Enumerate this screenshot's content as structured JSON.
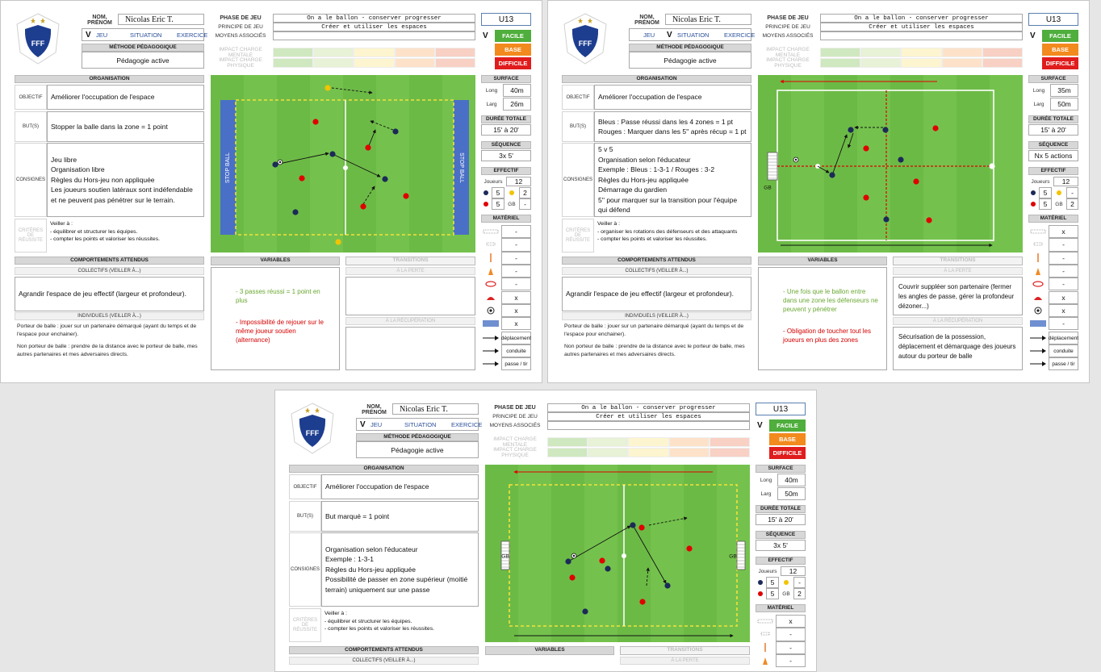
{
  "logo_text": "FFF",
  "sheets": [
    {
      "name_label": "NOM, PRÉNOM",
      "name": "Nicolas Eric T.",
      "tabs": [
        "JEU",
        "SITUATION",
        "EXERCICE"
      ],
      "tab_check": "V",
      "checked_tab": 0,
      "method_label": "MÉTHODE PÉDAGOGIQUE",
      "method": "Pédagogie active",
      "phase": [
        {
          "label": "PHASE DE JEU",
          "value": "On a le ballon - conserver progresser"
        },
        {
          "label": "PRINCIPE DE JEU",
          "value": "Créer et utiliser les espaces"
        },
        {
          "label": "MOYENS ASSOCIÉS"
        }
      ],
      "impact": [
        "IMPACT CHARGE MENTALE",
        "IMPACT CHARGE PHYSIQUE"
      ],
      "level": "U13",
      "difficulty": [
        "FACILE",
        "BASE",
        "DIFFICILE"
      ],
      "difficulty_check": "V",
      "checked_difficulty": 0,
      "organisation_title": "ORGANISATION",
      "rows": [
        {
          "label": "OBJECTIF",
          "lines": [
            "Améliorer l'occupation de l'espace"
          ]
        },
        {
          "label": "BUT(S)",
          "lines": [
            "Stopper la balle dans la zone = 1 point"
          ]
        },
        {
          "label": "CONSIGNES",
          "lines": [
            "Jeu libre",
            "Organisation libre",
            "Règles du Hors-jeu non appliquée",
            "Les joueurs soutien latéraux sont indéfendable et ne peuvent pas pénétrer sur le terrain."
          ]
        },
        {
          "label": "CRITÈRES DE RÉUSSITE",
          "lines": [
            "Veiller à :",
            "- équilibrer et structurer les équipes.",
            "- compter les points et valoriser les réussites."
          ]
        }
      ],
      "field_labels": [
        "STOP BALL",
        "STOP BALL"
      ],
      "surface_title": "SURFACE",
      "surface": [
        {
          "label": "Long",
          "value": "40m"
        },
        {
          "label": "Larg",
          "value": "26m"
        }
      ],
      "duration_title": "DURÉE TOTALE",
      "duration": "15' à 20'",
      "sequence_title": "SÉQUENCE",
      "sequence": "3x 5'",
      "effectif_title": "EFFECTIF",
      "players_label": "Joueurs",
      "players": "12",
      "teams": [
        {
          "count": "5",
          "extra": "2"
        },
        {
          "count": "5",
          "extra_label": "GB",
          "extra": "-"
        }
      ],
      "material_title": "MATÉRIEL",
      "material": [
        "-",
        "-",
        "-",
        "-",
        "-",
        "x",
        "x",
        "x"
      ],
      "moves": [
        "déplacement",
        "conduite",
        "passe / tir"
      ],
      "behaviour_title": "COMPORTEMENTS ATTENDUS",
      "collective_title": "COLLECTIFS (VEILLER À...)",
      "collective": "Agrandir l'espace de jeu effectif (largeur et profondeur).",
      "individual_title": "INDIVIDUELS (VEILLER À...)",
      "individual": [
        "Porteur de balle : jouer sur un partenaire démarqué (ayant du temps et de l'espace pour enchainer).",
        "Non porteur de balle : prendre de la distance avec le porteur de balle, mes autres partenaires et mes adversaires directs."
      ],
      "variables_title": "VARIABLES",
      "variables": [
        {
          "text": "- 3 passes réussi = 1 point en plus",
          "color": "#6aa832"
        },
        {
          "text": "- Impossibilité de rejouer sur le même joueur soutien (alternance)",
          "color": "#d40000"
        }
      ],
      "transitions_title": "TRANSITIONS",
      "loss_title": "À LA PERTE",
      "recovery_title": "À LA RÉCUPÉRATION"
    },
    {
      "name_label": "NOM, PRÉNOM",
      "name": "Nicolas Eric T.",
      "tabs": [
        "JEU",
        "SITUATION",
        "EXERCICE"
      ],
      "tab_check": "V",
      "checked_tab": 1,
      "method_label": "MÉTHODE PÉDAGOGIQUE",
      "method": "Pédagogie active",
      "phase": [
        {
          "label": "PHASE DE JEU",
          "value": "On a le ballon - conserver progresser"
        },
        {
          "label": "PRINCIPE DE JEU",
          "value": "Créer et utiliser les espaces"
        },
        {
          "label": "MOYENS ASSOCIÉS"
        }
      ],
      "impact": [
        "IMPACT CHARGE MENTALE",
        "IMPACT CHARGE PHYSIQUE"
      ],
      "level": "U13",
      "difficulty": [
        "FACILE",
        "BASE",
        "DIFFICILE"
      ],
      "difficulty_check": "V",
      "checked_difficulty": 0,
      "organisation_title": "ORGANISATION",
      "rows": [
        {
          "label": "OBJECTIF",
          "lines": [
            "Améliorer l'occupation de l'espace"
          ]
        },
        {
          "label": "BUT(S)",
          "lines": [
            "Bleus : Passe réussi dans les 4 zones = 1 pt",
            "Rouges : Marquer dans les 5'' après récup = 1 pt"
          ]
        },
        {
          "label": "CONSIGNES",
          "lines": [
            "5 v 5",
            "Organisation selon l'éducateur",
            "Exemple : Bleus : 1-3-1 / Rouges : 3-2",
            "Règles du Hors-jeu appliquée",
            "Démarrage du gardien",
            "5'' pour marquer sur la transition pour l'équipe qui défend"
          ]
        },
        {
          "label": "CRITÈRES DE RÉUSSITE",
          "lines": [
            "Veiller à :",
            "- organiser les rotations des défenseurs et des attaquants",
            "- compter les points et valoriser les réussites."
          ]
        }
      ],
      "field_labels": [
        "GB"
      ],
      "surface_title": "SURFACE",
      "surface": [
        {
          "label": "Long",
          "value": "35m"
        },
        {
          "label": "Larg",
          "value": "50m"
        }
      ],
      "duration_title": "DURÉE TOTALE",
      "duration": "15' à 20'",
      "sequence_title": "SÉQUENCE",
      "sequence": "Nx 5 actions",
      "effectif_title": "EFFECTIF",
      "players_label": "Joueurs",
      "players": "12",
      "teams": [
        {
          "count": "5",
          "extra": "-"
        },
        {
          "count": "5",
          "extra_label": "GB",
          "extra": "2"
        }
      ],
      "material_title": "MATÉRIEL",
      "material": [
        "x",
        "-",
        "-",
        "-",
        "-",
        "x",
        "x",
        "-"
      ],
      "moves": [
        "déplacement",
        "conduite",
        "passe / tir"
      ],
      "behaviour_title": "COMPORTEMENTS ATTENDUS",
      "collective_title": "COLLECTIFS (VEILLER À...)",
      "collective": "Agrandir l'espace de jeu effectif (largeur et profondeur).",
      "individual_title": "INDIVIDUELS (VEILLER À...)",
      "individual": [
        "Porteur de balle : jouer sur un partenaire démarqué (ayant du temps et de l'espace pour enchainer).",
        "Non porteur de balle : prendre de la distance avec le porteur de balle, mes autres partenaires et mes adversaires directs."
      ],
      "variables_title": "VARIABLES",
      "variables": [
        {
          "text": "- Une fois que le ballon entre dans une zone les défenseurs ne peuvent y pénétrer",
          "color": "#6aa832"
        },
        {
          "text": "- Obligation de toucher tout les joueurs en plus des zones",
          "color": "#d40000"
        }
      ],
      "transitions_title": "TRANSITIONS",
      "loss_title": "À LA PERTE",
      "recovery_title": "À LA RÉCUPÉRATION",
      "loss": "Couvrir suppléer son partenaire (fermer les angles de passe, gérer la profondeur dézoner...)",
      "recovery": "Sécurisation de la possession, déplacement et démarquage des joueurs autour du porteur de balle"
    },
    {
      "name_label": "NOM, PRÉNOM",
      "name": "Nicolas Eric T.",
      "tabs": [
        "JEU",
        "SITUATION",
        "EXERCICE"
      ],
      "tab_check": "V",
      "checked_tab": 0,
      "method_label": "MÉTHODE PÉDAGOGIQUE",
      "method": "Pédagogie active",
      "phase": [
        {
          "label": "PHASE DE JEU",
          "value": "On a le ballon - conserver progresser"
        },
        {
          "label": "PRINCIPE DE JEU",
          "value": "Créer et utiliser les espaces"
        },
        {
          "label": "MOYENS ASSOCIÉS"
        }
      ],
      "impact": [
        "IMPACT CHARGE MENTALE",
        "IMPACT CHARGE PHYSIQUE"
      ],
      "level": "U13",
      "difficulty": [
        "FACILE",
        "BASE",
        "DIFFICILE"
      ],
      "difficulty_check": "V",
      "checked_difficulty": 0,
      "organisation_title": "ORGANISATION",
      "rows": [
        {
          "label": "OBJECTIF",
          "lines": [
            "Améliorer l'occupation de l'espace"
          ]
        },
        {
          "label": "BUT(S)",
          "lines": [
            "But marqué = 1 point"
          ]
        },
        {
          "label": "CONSIGNES",
          "lines": [
            "Organisation selon l'éducateur",
            "Exemple : 1-3-1",
            "Règles du Hors-jeu appliquée",
            "Possibilité de passer en zone supérieur (moitié terrain) uniquement sur une passe"
          ]
        },
        {
          "label": "CRITÈRES DE RÉUSSITE",
          "lines": [
            "Veiller à :",
            "- équilibrer et structurer les équipes.",
            "- compter les points et valoriser les réussites."
          ]
        }
      ],
      "field_labels": [
        "GB",
        "GB"
      ],
      "surface_title": "SURFACE",
      "surface": [
        {
          "label": "Long",
          "value": "40m"
        },
        {
          "label": "Larg",
          "value": "50m"
        }
      ],
      "duration_title": "DURÉE TOTALE",
      "duration": "15' à 20'",
      "sequence_title": "SÉQUENCE",
      "sequence": "3x 5'",
      "effectif_title": "EFFECTIF",
      "players_label": "Joueurs",
      "players": "12",
      "teams": [
        {
          "count": "5",
          "extra": "-"
        },
        {
          "count": "5",
          "extra_label": "GB",
          "extra": "2"
        }
      ],
      "material_title": "MATÉRIEL",
      "material": [
        "x",
        "-",
        "-",
        "-"
      ],
      "behaviour_title": "COMPORTEMENTS ATTENDUS",
      "collective_title": "COLLECTIFS (VEILLER À...)",
      "variables_title": "VARIABLES",
      "transitions_title": "TRANSITIONS",
      "loss_title": "À LA PERTE"
    }
  ]
}
